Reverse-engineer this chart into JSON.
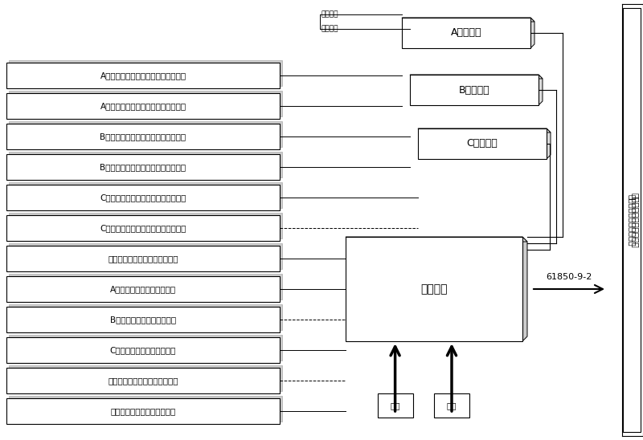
{
  "title": "",
  "bg_color": "#ffffff",
  "fig_width": 8.0,
  "fig_height": 5.48,
  "left_boxes": [
    "A相电流传感器输出二次变换（测量）",
    "A相电流传感器输出二次变换（保护）",
    "B相电流传感器输出二次变换（测量）",
    "B相电流传感器输出二次变换（保护）",
    "C相电流传感器输出二次变换（测量）",
    "C相电流传感器输出二次变换（保护）",
    "中性点电流传感器输出二次变换",
    "A相电压传感器输出二次变换",
    "B相电压传感器输出二次变换",
    "C相电压传感器输出二次变换",
    "中性点电压传感器输出二次变换",
    "母线电压传感器输出二次变换"
  ],
  "right_collectors": [
    "A相采集器",
    "B相采集器",
    "C相采集器"
  ],
  "merge_unit": "合并单元",
  "protocol_label": "61850-9-2",
  "right_label": "综合数据网络与控制系统",
  "tekuang_label1": "特定规约",
  "tekuang_label2": "特定规约",
  "power_label": "电源",
  "time_label": "时钟"
}
